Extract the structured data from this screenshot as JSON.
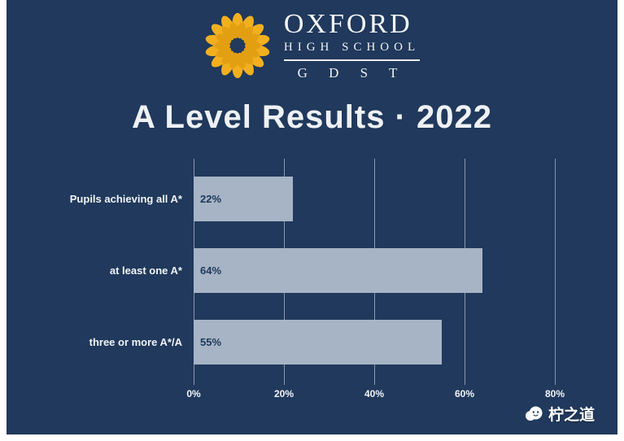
{
  "theme": {
    "canvas_bg": "#20395c",
    "bar_color": "#a7b4c5",
    "bar_label_color": "#20395c",
    "grid_color": "#8a98a9",
    "gold": "#f2b01e"
  },
  "logo": {
    "icon": "sunflower-icon",
    "line1": "OXFORD",
    "line2": "HIGH SCHOOL",
    "line3": "G D S T"
  },
  "title": "A Level Results · 2022",
  "chart_data": {
    "type": "bar",
    "orientation": "horizontal",
    "title": "A Level Results · 2022",
    "categories": [
      "Pupils achieving all A*",
      "at least one A*",
      "three or more A*/A"
    ],
    "values": [
      22,
      64,
      55
    ],
    "value_labels": [
      "22%",
      "64%",
      "55%"
    ],
    "x_ticks": [
      "0%",
      "20%",
      "40%",
      "60%",
      "80%"
    ],
    "xlim": [
      0,
      80
    ],
    "grid": true,
    "legend": false
  },
  "watermark": {
    "text": "柠之道",
    "icon": "watermark-logo-icon"
  }
}
